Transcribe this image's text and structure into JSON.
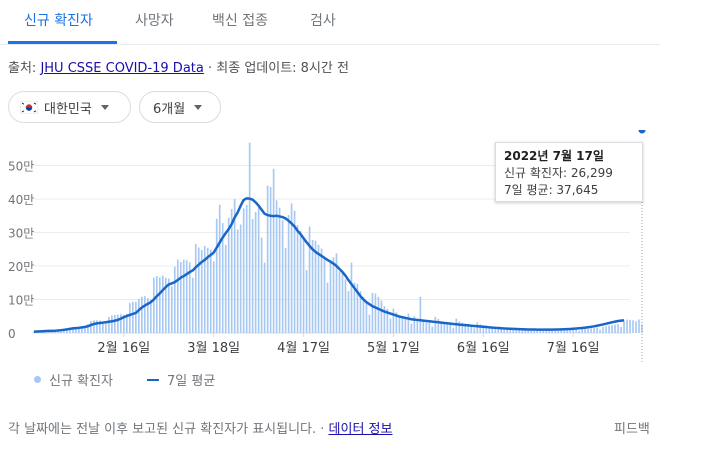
{
  "tabs": [
    {
      "label": "신규 확진자",
      "active": true
    },
    {
      "label": "사망자",
      "active": false
    },
    {
      "label": "백신 접종",
      "active": false
    },
    {
      "label": "검사",
      "active": false
    }
  ],
  "source": {
    "prefix": "출처: ",
    "link": "JHU CSSE COVID-19 Data",
    "separator": " · ",
    "updated": "최종 업데이트: 8시간 전"
  },
  "filters": {
    "region": {
      "label": "대한민국",
      "icon": "korea-flag-icon"
    },
    "range": {
      "label": "6개월"
    }
  },
  "tooltip": {
    "date": "2022년 7월 17일",
    "cases_line": "신규 확진자: 26,299",
    "avg_line": "7일 평균: 37,645"
  },
  "legend": {
    "cases": "신규 확진자",
    "avg": "7일 평균"
  },
  "footer": {
    "note": "각 날짜에는 전날 이후 보고된 신규 확진자가 표시됩니다.",
    "separator": " · ",
    "link": "데이터 정보",
    "feedback": "피드백"
  },
  "colors": {
    "accent": "#1a73e8",
    "bar": "#a6c8f2",
    "line": "#1a66c8"
  },
  "chart_data": {
    "type": "bar",
    "x_range": [
      "2022-01-17",
      "2022-07-17"
    ],
    "x_tick_labels": [
      "2월 16일",
      "3월 18일",
      "4월 17일",
      "5월 17일",
      "6월 16일",
      "7월 16일"
    ],
    "y_tick_labels": [
      "0",
      "10만",
      "20만",
      "30만",
      "40만",
      "50만"
    ],
    "ylim": [
      0,
      600000
    ],
    "grid": true,
    "legend_position": "bottom-left",
    "series": [
      {
        "name": "신규 확진자",
        "kind": "bar",
        "start_date": "2022-01-17",
        "values": [
          4200,
          4100,
          5800,
          6700,
          7000,
          6800,
          7600,
          7500,
          8100,
          11000,
          13000,
          14000,
          15000,
          17000,
          18000,
          17500,
          20000,
          22000,
          27000,
          36000,
          38000,
          38000,
          37000,
          32000,
          27000,
          48000,
          52000,
          54000,
          55000,
          56000,
          54000,
          57000,
          90000,
          93000,
          93000,
          102000,
          108000,
          110000,
          104000,
          99000,
          165000,
          170000,
          166000,
          171000,
          165000,
          163000,
          139000,
          198000,
          219000,
          212000,
          219000,
          217000,
          211000,
          165000,
          266000,
          255000,
          248000,
          260000,
          254000,
          249000,
          214000,
          341000,
          383000,
          328000,
          263000,
          343000,
          370000,
          400000,
          309000,
          324000,
          372000,
          383000,
          568000,
          340000,
          361000,
          374000,
          285000,
          210000,
          440000,
          436000,
          490000,
          396000,
          374000,
          336000,
          254000,
          352000,
          387000,
          365000,
          322000,
          305000,
          280000,
          188000,
          318000,
          278000,
          276000,
          263000,
          252000,
          225000,
          150000,
          214000,
          226000,
          238000,
          184000,
          182000,
          160000,
          125000,
          210000,
          150000,
          147000,
          125000,
          107000,
          92000,
          55000,
          120000,
          118000,
          108000,
          97000,
          80000,
          72000,
          43000,
          73000,
          62000,
          52000,
          50000,
          47000,
          58000,
          28000,
          50000,
          42000,
          108000,
          39000,
          32000,
          35000,
          19000,
          48000,
          42000,
          31000,
          30000,
          28000,
          29000,
          16000,
          43000,
          35000,
          31000,
          28000,
          27000,
          25000,
          14000,
          32000,
          26000,
          23000,
          22000,
          20000,
          19000,
          12000,
          17000,
          16000,
          15000,
          15000,
          14000,
          13000,
          9000,
          14000,
          13000,
          12000,
          12000,
          11000,
          10000,
          7000,
          11000,
          11000,
          9900,
          9300,
          9000,
          8800,
          6400,
          9000,
          9700,
          9800,
          9900,
          10000,
          10000,
          6700,
          12000,
          13000,
          12500,
          14000,
          14300,
          15700,
          10000,
          19000,
          20000,
          22000,
          23600,
          24900,
          26000,
          18000,
          37000,
          40000,
          39000,
          38000,
          35000,
          40300,
          26299
        ]
      },
      {
        "name": "7일 평균",
        "kind": "line",
        "values": [
          4000,
          4400,
          4900,
          5400,
          5900,
          6200,
          6500,
          6900,
          7500,
          8400,
          9500,
          10900,
          12400,
          13700,
          14700,
          15500,
          16700,
          18000,
          20200,
          23700,
          27000,
          28700,
          30000,
          31000,
          32200,
          33600,
          35000,
          36700,
          39200,
          43000,
          47200,
          50800,
          54000,
          57000,
          60000,
          68000,
          76000,
          82000,
          87000,
          92000,
          100000,
          110000,
          118000,
          128000,
          137000,
          145000,
          148000,
          152000,
          158000,
          165000,
          170000,
          176000,
          182000,
          187000,
          196000,
          204000,
          212000,
          218000,
          226000,
          233000,
          240000,
          255000,
          270000,
          285000,
          298000,
          310000,
          325000,
          345000,
          360000,
          380000,
          397000,
          402000,
          401000,
          398000,
          390000,
          380000,
          368000,
          356000,
          352000,
          350000,
          349000,
          350000,
          348000,
          346000,
          342000,
          335000,
          327000,
          318000,
          305000,
          295000,
          283000,
          271000,
          260000,
          250000,
          242000,
          236000,
          230000,
          224000,
          218000,
          213000,
          207000,
          200000,
          191000,
          182000,
          171000,
          158000,
          146000,
          134000,
          122000,
          110000,
          100000,
          92000,
          86000,
          80000,
          76000,
          72000,
          68000,
          64000,
          61000,
          58000,
          55000,
          52000,
          49000,
          47000,
          45000,
          43000,
          41000,
          40000,
          39000,
          38000,
          37000,
          36000,
          35000,
          34000,
          33000,
          32000,
          31000,
          30000,
          29000,
          28000,
          27000,
          26000,
          25000,
          24200,
          23400,
          22600,
          21800,
          21000,
          20200,
          19400,
          18600,
          17800,
          17000,
          16200,
          15500,
          14800,
          14200,
          13600,
          13100,
          12600,
          12200,
          11800,
          11400,
          11100,
          10800,
          10600,
          10400,
          10300,
          10200,
          10100,
          10050,
          10050,
          10100,
          10200,
          10300,
          10500,
          10800,
          11100,
          11500,
          12000,
          12600,
          13300,
          14100,
          15000,
          16000,
          17200,
          18500,
          20000,
          21700,
          23600,
          25600,
          27700,
          29900,
          32000,
          34000,
          35800,
          36900,
          37645
        ]
      }
    ]
  }
}
